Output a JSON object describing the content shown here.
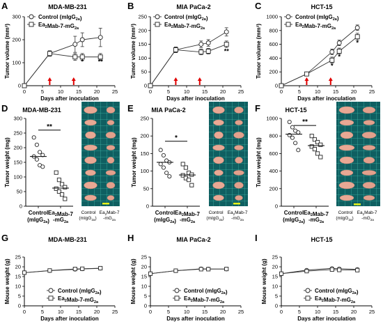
{
  "panels": [
    {
      "letter": "A",
      "title": "MDA-MB-231"
    },
    {
      "letter": "B",
      "title": "MIA PaCa-2"
    },
    {
      "letter": "C",
      "title": "HCT-15"
    },
    {
      "letter": "D",
      "title": "MDA-MB-231"
    },
    {
      "letter": "E",
      "title": "MIA PaCa-2"
    },
    {
      "letter": "F",
      "title": "HCT-15"
    },
    {
      "letter": "G",
      "title": "MDA-MB-231"
    },
    {
      "letter": "H",
      "title": "MIA PaCa-2"
    },
    {
      "letter": "I",
      "title": "HCT-15"
    }
  ],
  "photo": {
    "col_control": [
      "Control",
      "(mIgG",
      "2a",
      ")"
    ],
    "col_treat": [
      "Ea",
      "2",
      "Mab-7",
      "-mG",
      "2a"
    ]
  },
  "chart_data": [
    {
      "id": "A",
      "type": "line",
      "title": "MDA-MB-231",
      "xlabel": "Days after inoculation",
      "ylabel": "Tumor volume (mm³)",
      "xlim": [
        0,
        25
      ],
      "ylim": [
        0,
        300
      ],
      "xticks": [
        0,
        5,
        10,
        15,
        20,
        25
      ],
      "yticks": [
        0,
        100,
        200,
        300
      ],
      "x": [
        0,
        7,
        14,
        16,
        21
      ],
      "series": [
        {
          "name": "Control (mIgG2a)",
          "marker": "circle",
          "values": [
            0,
            140,
            180,
            200,
            210
          ],
          "err": [
            0,
            12,
            35,
            30,
            40
          ]
        },
        {
          "name": "Ea2Mab-7-mG2a",
          "marker": "square",
          "values": [
            0,
            140,
            125,
            125,
            125
          ],
          "err": [
            0,
            10,
            15,
            15,
            15
          ]
        }
      ],
      "treatment_days": [
        7,
        14
      ],
      "annotations": [
        {
          "x": 16,
          "y": 95,
          "text": "*"
        },
        {
          "x": 21,
          "y": 95,
          "text": "**"
        }
      ],
      "legend": "top-left"
    },
    {
      "id": "B",
      "type": "line",
      "title": "MIA PaCa-2",
      "xlabel": "Days after inoculation",
      "ylabel": "Tumor volume (mm³)",
      "xlim": [
        0,
        25
      ],
      "ylim": [
        0,
        250
      ],
      "xticks": [
        0,
        5,
        10,
        15,
        20,
        25
      ],
      "yticks": [
        0,
        50,
        100,
        150,
        200,
        250
      ],
      "x": [
        0,
        7,
        14,
        16,
        21
      ],
      "series": [
        {
          "name": "Control (mIgG2a)",
          "marker": "circle",
          "values": [
            0,
            130,
            150,
            155,
            195
          ],
          "err": [
            0,
            10,
            12,
            12,
            15
          ]
        },
        {
          "name": "Ea2Mab-7-mG2a",
          "marker": "square",
          "values": [
            0,
            130,
            122,
            125,
            150
          ],
          "err": [
            0,
            10,
            10,
            10,
            12
          ]
        }
      ],
      "treatment_days": [
        7,
        14
      ],
      "annotations": [
        {
          "x": 21,
          "y": 118,
          "text": "**"
        }
      ],
      "legend": "top-left"
    },
    {
      "id": "C",
      "type": "line",
      "title": "HCT-15",
      "xlabel": "Days after inoculation",
      "ylabel": "Tumor volume (mm³)",
      "xlim": [
        0,
        25
      ],
      "ylim": [
        0,
        1000
      ],
      "xticks": [
        0,
        5,
        10,
        15,
        20,
        25
      ],
      "yticks": [
        0,
        200,
        400,
        600,
        800,
        1000
      ],
      "x": [
        0,
        7,
        14,
        16,
        21
      ],
      "series": [
        {
          "name": "Control (mIgG2a)",
          "marker": "circle",
          "values": [
            0,
            170,
            490,
            620,
            840
          ],
          "err": [
            0,
            15,
            40,
            40,
            40
          ]
        },
        {
          "name": "Ea2Mab-7-mG2a",
          "marker": "square",
          "values": [
            0,
            170,
            370,
            500,
            710
          ],
          "err": [
            0,
            15,
            45,
            45,
            50
          ]
        }
      ],
      "treatment_days": [
        7,
        14
      ],
      "annotations": [
        {
          "x": 14,
          "y": 260,
          "text": "*"
        },
        {
          "x": 16,
          "y": 390,
          "text": "*"
        },
        {
          "x": 21,
          "y": 590,
          "text": "*"
        }
      ],
      "legend": "top-left"
    },
    {
      "id": "D",
      "type": "scatter",
      "title": "MDA-MB-231",
      "ylabel": "Tumor weight (mg)",
      "ylim": [
        0,
        300
      ],
      "yticks": [
        0,
        50,
        100,
        150,
        200,
        250,
        300
      ],
      "categories": [
        "Control (mIgG2a)",
        "Ea2Mab-7-mG2a"
      ],
      "groups": [
        {
          "marker": "circle",
          "values": [
            235,
            210,
            185,
            175,
            170,
            160,
            140,
            135
          ],
          "mean": 170
        },
        {
          "marker": "square",
          "values": [
            115,
            90,
            75,
            65,
            60,
            50,
            40,
            25
          ],
          "mean": 62
        }
      ],
      "significance": "**",
      "sig_y": 260
    },
    {
      "id": "E",
      "type": "scatter",
      "title": "MIA PaCa-2",
      "ylabel": "Tumor weight (mg)",
      "ylim": [
        0,
        250
      ],
      "yticks": [
        0,
        50,
        100,
        150,
        200,
        250
      ],
      "categories": [
        "Control (mIgG2a)",
        "Ea2Mab-7-mG2a"
      ],
      "groups": [
        {
          "marker": "circle",
          "values": [
            160,
            145,
            130,
            125,
            120,
            110,
            95,
            85
          ],
          "mean": 125
        },
        {
          "marker": "square",
          "values": [
            120,
            110,
            95,
            90,
            88,
            80,
            75,
            60
          ],
          "mean": 89
        }
      ],
      "significance": "*",
      "sig_y": 185
    },
    {
      "id": "F",
      "type": "scatter",
      "title": "HCT-15",
      "ylabel": "Tumor weight (mg)",
      "ylim": [
        0,
        1000
      ],
      "yticks": [
        0,
        200,
        400,
        600,
        800,
        1000
      ],
      "categories": [
        "Control (mIgG2a)",
        "Ea2Mab-7-mG2a"
      ],
      "groups": [
        {
          "marker": "circle",
          "values": [
            960,
            900,
            860,
            840,
            810,
            780,
            720,
            640
          ],
          "mean": 820
        },
        {
          "marker": "square",
          "values": [
            800,
            760,
            730,
            700,
            680,
            650,
            600,
            560
          ],
          "mean": 690
        }
      ],
      "significance": "**",
      "sig_y": 920
    },
    {
      "id": "G",
      "type": "line",
      "title": "MDA-MB-231",
      "xlabel": "Days after inoculation",
      "ylabel": "Mouse weight (g)",
      "xlim": [
        0,
        25
      ],
      "ylim": [
        0,
        25
      ],
      "xticks": [
        0,
        5,
        10,
        15,
        20,
        25
      ],
      "yticks": [
        0,
        5,
        10,
        15,
        20,
        25
      ],
      "x": [
        0,
        7,
        14,
        16,
        21
      ],
      "series": [
        {
          "name": "Control (mIgG2a)",
          "marker": "circle",
          "values": [
            17,
            18,
            18.7,
            18.9,
            19.2
          ]
        },
        {
          "name": "Ea2Mab-7-mG2a",
          "marker": "square",
          "values": [
            17,
            18.1,
            18.9,
            19.0,
            19.3
          ]
        }
      ],
      "legend": "bottom-right"
    },
    {
      "id": "H",
      "type": "line",
      "title": "MIA PaCa-2",
      "xlabel": "Days after inoculation",
      "ylabel": "Mouse weight (g)",
      "xlim": [
        0,
        25
      ],
      "ylim": [
        0,
        25
      ],
      "xticks": [
        0,
        5,
        10,
        15,
        20,
        25
      ],
      "yticks": [
        0,
        5,
        10,
        15,
        20,
        25
      ],
      "x": [
        0,
        7,
        14,
        16,
        21
      ],
      "series": [
        {
          "name": "Control (mIgG2a)",
          "marker": "circle",
          "values": [
            16.5,
            18,
            19,
            18.9,
            18.8
          ]
        },
        {
          "name": "Ea2Mab-7-mG2a",
          "marker": "square",
          "values": [
            16.5,
            18,
            18.8,
            18.8,
            18.9
          ]
        }
      ],
      "legend": "bottom-right"
    },
    {
      "id": "I",
      "type": "line",
      "title": "HCT-15",
      "xlabel": "Days after inoculation",
      "ylabel": "Mouse weight (g)",
      "xlim": [
        0,
        25
      ],
      "ylim": [
        0,
        25
      ],
      "xticks": [
        0,
        5,
        10,
        15,
        20,
        25
      ],
      "yticks": [
        0,
        5,
        10,
        15,
        20,
        25
      ],
      "x": [
        0,
        7,
        14,
        16,
        21
      ],
      "series": [
        {
          "name": "Control (mIgG2a)",
          "marker": "circle",
          "values": [
            16.5,
            18.3,
            19.2,
            19.0,
            18.7
          ]
        },
        {
          "name": "Ea2Mab-7-mG2a",
          "marker": "square",
          "values": [
            16.5,
            17.8,
            18.6,
            18.4,
            18.3
          ]
        }
      ],
      "legend": "bottom-right"
    }
  ]
}
